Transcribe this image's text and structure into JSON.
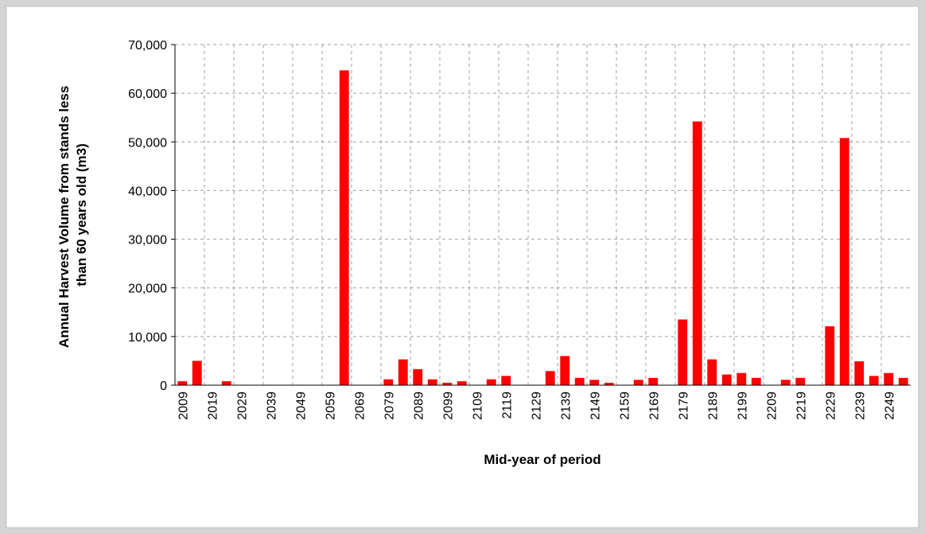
{
  "chart_data": {
    "type": "bar",
    "y_label": [
      "Annual Harvest Volume from stands less",
      "than 60 years old (m3)"
    ],
    "x_label": "Mid-year of period",
    "categories": [
      "2009",
      null,
      "2019",
      null,
      "2029",
      null,
      "2039",
      null,
      "2049",
      null,
      "2059",
      null,
      "2069",
      null,
      "2079",
      null,
      "2089",
      null,
      "2099",
      null,
      "2109",
      null,
      "2119",
      null,
      "2129",
      null,
      "2139",
      null,
      "2149",
      null,
      "2159",
      null,
      "2169",
      null,
      "2179",
      null,
      "2189",
      null,
      "2199",
      null,
      "2209",
      null,
      "2219",
      null,
      "2229",
      null,
      "2239",
      null,
      "2249",
      null
    ],
    "values": [
      800,
      5000,
      0,
      800,
      0,
      0,
      0,
      0,
      0,
      0,
      0,
      64700,
      0,
      0,
      1200,
      5300,
      3300,
      1200,
      500,
      800,
      0,
      1200,
      1900,
      0,
      0,
      2900,
      6000,
      1500,
      1100,
      500,
      0,
      1100,
      1500,
      0,
      13500,
      54200,
      5300,
      2200,
      2500,
      1500,
      0,
      1100,
      1500,
      0,
      12100,
      50800,
      4900,
      1900,
      2500,
      1500
    ],
    "color": "#ff0000",
    "ylim": [
      0,
      70000
    ],
    "yticks": [
      0,
      {
        "value": 10000,
        "label": "10,000"
      },
      {
        "value": 20000,
        "label": "20,000"
      },
      {
        "value": 30000,
        "label": "30,000"
      },
      {
        "value": 40000,
        "label": "40,000"
      },
      {
        "value": 50000,
        "label": "50,000"
      },
      {
        "value": 60000,
        "label": "60,000"
      },
      {
        "value": 70000,
        "label": "70,000"
      }
    ],
    "grid": true
  }
}
